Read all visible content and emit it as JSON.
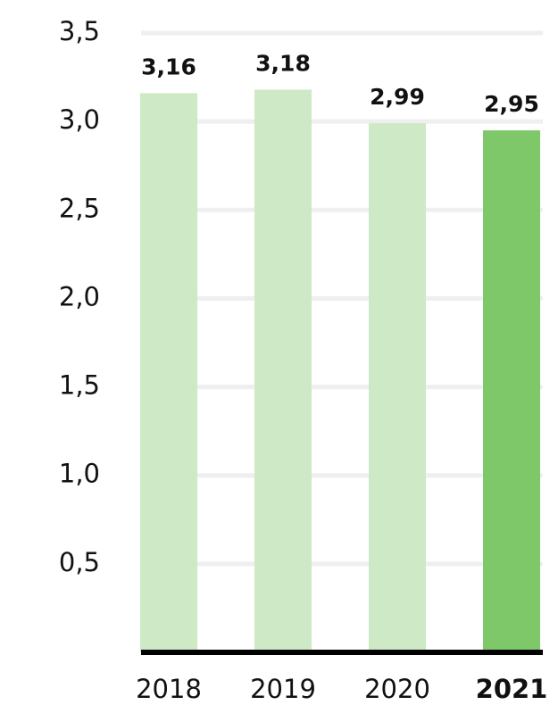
{
  "chart_data": {
    "type": "bar",
    "categories": [
      "2018",
      "2019",
      "2020",
      "2021"
    ],
    "values": [
      3.16,
      3.18,
      2.99,
      2.95
    ],
    "value_labels": [
      "3,16",
      "3,18",
      "2,99",
      "2,95"
    ],
    "colors": [
      "#cde9c6",
      "#cde9c6",
      "#cde9c6",
      "#7ec86a"
    ],
    "highlight": 3,
    "ylim": [
      0,
      3.5
    ],
    "yticks": [
      {
        "value": 0.5,
        "label": "0,5"
      },
      {
        "value": 1.0,
        "label": "1,0"
      },
      {
        "value": 1.5,
        "label": "1,5"
      },
      {
        "value": 2.0,
        "label": "2,0"
      },
      {
        "value": 2.5,
        "label": "2,5"
      },
      {
        "value": 3.0,
        "label": "3,0"
      },
      {
        "value": 3.5,
        "label": "3,5"
      }
    ],
    "grid": true
  }
}
